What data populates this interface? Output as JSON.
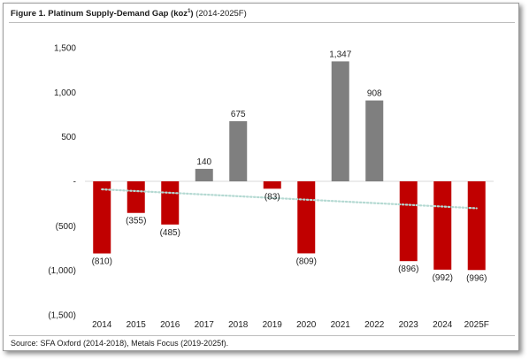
{
  "figure": {
    "title_bold": "Figure 1. Platinum Supply-Demand Gap (koz",
    "title_sup": "1",
    "title_bold_end": ")",
    "title_rest": " (2014-2025F)",
    "source": "Source: SFA Oxford (2014-2018), Metals Focus (2019-2025f)."
  },
  "colors": {
    "negative": "#c00000",
    "positive": "#7f7f7f",
    "trendline": "#b4d9d2",
    "zero_line": "#d9d9d9"
  },
  "chart_data": {
    "type": "bar",
    "title": "Platinum Supply-Demand Gap (koz)",
    "categories": [
      "2014",
      "2015",
      "2016",
      "2017",
      "2018",
      "2019",
      "2020",
      "2021",
      "2022",
      "2023",
      "2024",
      "2025F"
    ],
    "values": [
      -810,
      -355,
      -485,
      140,
      675,
      -83,
      -809,
      1347,
      908,
      -896,
      -992,
      -996
    ],
    "data_labels": [
      "(810)",
      "(355)",
      "(485)",
      "140",
      "675",
      "(83)",
      "(809)",
      "1,347",
      "908",
      "(896)",
      "(992)",
      "(996)"
    ],
    "yticks": [
      1500,
      1000,
      500,
      0,
      -500,
      -1000,
      -1500
    ],
    "ytick_labels": [
      "1,500",
      "1,000",
      "500",
      "-",
      "(500)",
      "(1,000)",
      "(1,500)"
    ],
    "ylim": [
      -1500,
      1500
    ],
    "trendline": {
      "type": "linear",
      "style": "dotted"
    },
    "grid": false,
    "legend": "none"
  }
}
